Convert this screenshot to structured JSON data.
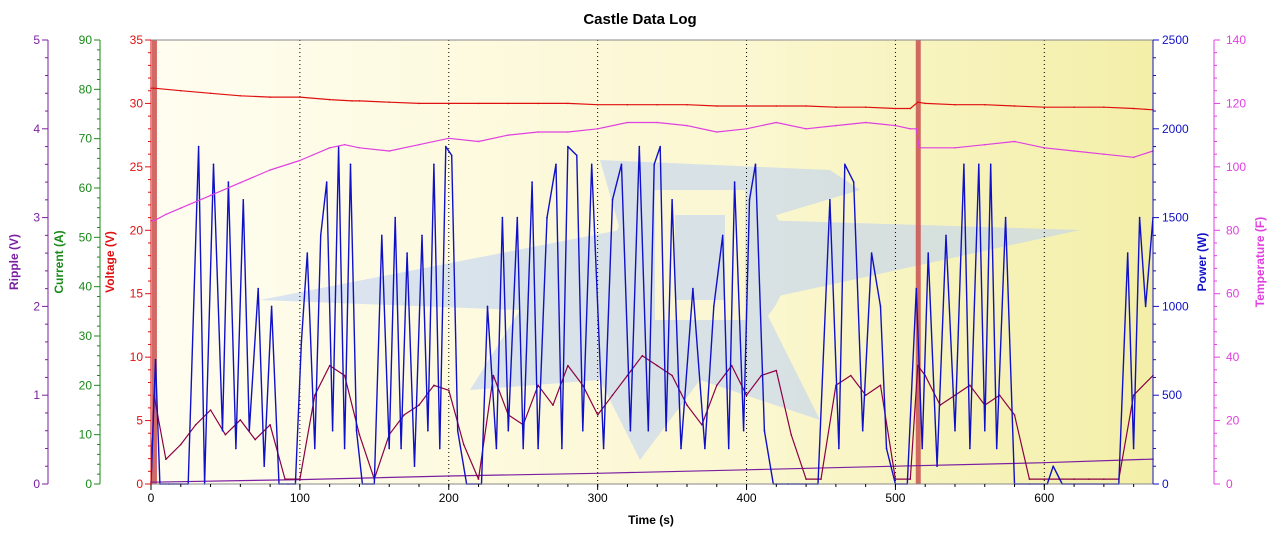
{
  "chart_data": {
    "type": "line",
    "title": "Castle Data Log",
    "xlabel": "Time (s)",
    "xlim": [
      0,
      673
    ],
    "x_ticks": [
      0,
      100,
      200,
      300,
      400,
      500,
      600
    ],
    "vertical_gridlines_dotted": [
      100,
      200,
      300,
      400,
      500,
      600
    ],
    "shaded_marker_lines": [
      2,
      515
    ],
    "axes": [
      {
        "key": "ripple",
        "label": "Ripple (V)",
        "side": "left",
        "color": "#7b1fa2",
        "min": 0,
        "max": 5,
        "ticks": [
          0,
          1,
          2,
          3,
          4,
          5
        ]
      },
      {
        "key": "current",
        "label": "Current (A)",
        "side": "left",
        "color": "#1a8a1a",
        "min": 0,
        "max": 90,
        "ticks": [
          0,
          10,
          20,
          30,
          40,
          50,
          60,
          70,
          80,
          90
        ]
      },
      {
        "key": "voltage",
        "label": "Voltage (V)",
        "side": "left",
        "color": "#e01010",
        "min": 0,
        "max": 35,
        "ticks": [
          0,
          5,
          10,
          15,
          20,
          25,
          30,
          35
        ]
      },
      {
        "key": "power",
        "label": "Power (W)",
        "side": "right",
        "color": "#1010c8",
        "min": 0,
        "max": 2500,
        "ticks": [
          0,
          500,
          1000,
          1500,
          2000,
          2500
        ]
      },
      {
        "key": "temperature",
        "label": "Temperature (F)",
        "side": "right",
        "color": "#e040e0",
        "min": 0,
        "max": 140,
        "ticks": [
          0,
          20,
          40,
          60,
          80,
          100,
          120,
          140
        ]
      }
    ],
    "series": [
      {
        "name": "Voltage (V)",
        "axis": "voltage",
        "color": "#e01010",
        "x": [
          0,
          2,
          20,
          40,
          60,
          80,
          100,
          120,
          135,
          140,
          160,
          180,
          200,
          220,
          240,
          260,
          280,
          300,
          320,
          340,
          360,
          380,
          400,
          420,
          440,
          460,
          480,
          500,
          510,
          515,
          520,
          540,
          560,
          580,
          600,
          620,
          640,
          660,
          673
        ],
        "values": [
          31.2,
          31.2,
          31.0,
          30.8,
          30.6,
          30.5,
          30.5,
          30.3,
          30.2,
          30.2,
          30.1,
          30.0,
          30.0,
          30.0,
          30.0,
          30.0,
          30.0,
          29.9,
          29.9,
          29.9,
          29.9,
          29.8,
          29.8,
          29.8,
          29.8,
          29.7,
          29.7,
          29.6,
          29.6,
          30.1,
          30.0,
          29.9,
          29.9,
          29.8,
          29.7,
          29.7,
          29.7,
          29.6,
          29.5
        ]
      },
      {
        "name": "Temperature (F)",
        "axis": "temperature",
        "color": "#e040e0",
        "x": [
          0,
          2,
          10,
          20,
          40,
          60,
          80,
          100,
          120,
          130,
          140,
          160,
          180,
          200,
          220,
          240,
          260,
          280,
          300,
          320,
          340,
          360,
          380,
          400,
          420,
          440,
          460,
          480,
          500,
          510,
          514,
          516,
          540,
          560,
          580,
          600,
          620,
          640,
          660,
          673
        ],
        "values": [
          83,
          83,
          85,
          87,
          91,
          95,
          99,
          102,
          106,
          107,
          106,
          105,
          107,
          109,
          108,
          110,
          111,
          111,
          112,
          114,
          114,
          113,
          111,
          112,
          114,
          112,
          113,
          114,
          113,
          112,
          112,
          106,
          106,
          107,
          108,
          106,
          105,
          104,
          103,
          105
        ]
      },
      {
        "name": "Power (W)",
        "axis": "power",
        "color": "#1010c8",
        "x": [
          0,
          3,
          6,
          12,
          25,
          32,
          36,
          42,
          48,
          52,
          57,
          62,
          66,
          72,
          76,
          81,
          86,
          92,
          97,
          101,
          105,
          110,
          114,
          118,
          122,
          126,
          130,
          134,
          138,
          142,
          150,
          155,
          160,
          164,
          168,
          172,
          177,
          182,
          186,
          190,
          194,
          198,
          202,
          206,
          212,
          222,
          226,
          232,
          236,
          240,
          246,
          250,
          256,
          260,
          266,
          272,
          276,
          280,
          286,
          290,
          296,
          300,
          304,
          310,
          316,
          322,
          328,
          334,
          338,
          342,
          346,
          350,
          356,
          364,
          372,
          378,
          384,
          388,
          392,
          398,
          402,
          406,
          412,
          418,
          428,
          448,
          456,
          462,
          466,
          472,
          478,
          484,
          490,
          494,
          500,
          508,
          514,
          518,
          522,
          528,
          534,
          540,
          546,
          550,
          556,
          560,
          564,
          568,
          574,
          580,
          590,
          602,
          606,
          612,
          650,
          656,
          660,
          664,
          668,
          673
        ],
        "values": [
          0,
          700,
          0,
          0,
          0,
          1900,
          0,
          1800,
          300,
          1700,
          200,
          1600,
          300,
          1100,
          100,
          1000,
          0,
          0,
          0,
          800,
          1300,
          200,
          1400,
          1700,
          300,
          1900,
          200,
          1800,
          300,
          0,
          0,
          1400,
          200,
          1500,
          200,
          1300,
          100,
          1400,
          300,
          1800,
          200,
          1900,
          1850,
          300,
          0,
          0,
          1000,
          200,
          1500,
          300,
          1500,
          200,
          1700,
          200,
          1500,
          1800,
          200,
          1900,
          1850,
          300,
          1800,
          1000,
          200,
          1600,
          1800,
          300,
          1900,
          300,
          1800,
          1900,
          300,
          1600,
          200,
          1100,
          200,
          1000,
          1400,
          200,
          1700,
          300,
          1600,
          1800,
          300,
          0,
          0,
          0,
          1600,
          200,
          1800,
          1700,
          300,
          1300,
          1000,
          200,
          0,
          0,
          1100,
          200,
          1300,
          100,
          1400,
          300,
          1800,
          200,
          1800,
          300,
          1800,
          200,
          1500,
          0,
          0,
          0,
          100,
          0,
          0,
          1300,
          200,
          1500,
          1000,
          1500
        ]
      },
      {
        "name": "Current (A)",
        "axis": "current",
        "color": "#8b0045",
        "x": [
          0,
          2,
          10,
          20,
          30,
          40,
          50,
          60,
          70,
          80,
          90,
          100,
          110,
          120,
          130,
          140,
          150,
          160,
          170,
          180,
          190,
          200,
          210,
          220,
          230,
          240,
          250,
          260,
          270,
          280,
          290,
          300,
          310,
          320,
          330,
          340,
          350,
          360,
          370,
          380,
          390,
          400,
          410,
          420,
          430,
          440,
          450,
          460,
          470,
          480,
          490,
          500,
          510,
          515,
          520,
          530,
          540,
          550,
          560,
          570,
          580,
          590,
          600,
          610,
          620,
          630,
          640,
          650,
          660,
          673
        ],
        "values": [
          0,
          18,
          5,
          8,
          12,
          15,
          10,
          13,
          9,
          12,
          1,
          1,
          18,
          24,
          22,
          10,
          1,
          10,
          14,
          16,
          20,
          19,
          8,
          1,
          22,
          14,
          12,
          20,
          16,
          24,
          20,
          14,
          18,
          22,
          26,
          24,
          22,
          16,
          12,
          20,
          24,
          18,
          22,
          23,
          10,
          1,
          1,
          20,
          22,
          18,
          20,
          1,
          1,
          24,
          22,
          16,
          18,
          20,
          16,
          18,
          14,
          1,
          1,
          1,
          1,
          1,
          1,
          1,
          18,
          22
        ]
      },
      {
        "name": "Ripple (V)",
        "axis": "ripple",
        "color": "#7b1fa2",
        "x": [
          0,
          100,
          200,
          300,
          400,
          500,
          600,
          673
        ],
        "values": [
          0.02,
          0.05,
          0.09,
          0.12,
          0.16,
          0.2,
          0.24,
          0.28
        ]
      }
    ]
  }
}
